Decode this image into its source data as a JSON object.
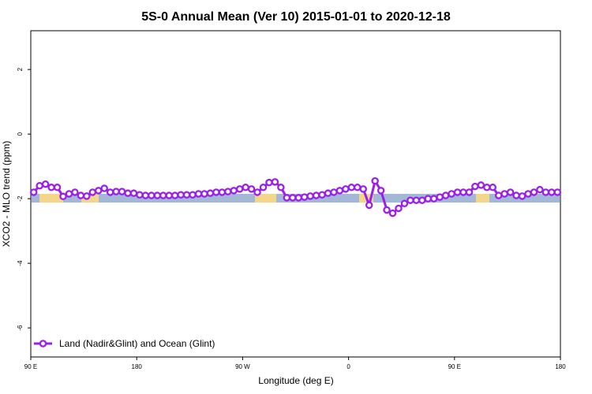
{
  "chart_data": {
    "type": "line",
    "title": "5S-0 Annual Mean (Ver 10)   2015-01-01 to 2020-12-18",
    "xlabel": "Longitude (deg E)",
    "ylabel": "XCO2 - MLO trend (ppm)",
    "xlim": [
      90,
      450
    ],
    "ylim": [
      -6.9,
      3.2
    ],
    "x_ticks": [
      {
        "value": 90,
        "label": "90 E"
      },
      {
        "value": 162,
        "label": "180"
      },
      {
        "value": 234,
        "label": "90 W"
      },
      {
        "value": 306,
        "label": "0"
      },
      {
        "value": 378,
        "label": "90 E"
      },
      {
        "value": 450,
        "label": "180"
      }
    ],
    "y_ticks": [
      {
        "value": 2,
        "label": "2"
      },
      {
        "value": 0,
        "label": "0"
      },
      {
        "value": -2,
        "label": "-2"
      },
      {
        "value": -4,
        "label": "-4"
      },
      {
        "value": -6,
        "label": "-6"
      }
    ],
    "grid": false,
    "legend_position": "bottom-left",
    "series": [
      {
        "name": "Land (Nadir&Glint) and Ocean (Glint)",
        "color": "#9b1fe8",
        "marker": "open-circle",
        "x": [
          92,
          96,
          100,
          104,
          108,
          112,
          116,
          120,
          124,
          128,
          132,
          136,
          140,
          144,
          148,
          152,
          156,
          160,
          164,
          168,
          172,
          176,
          180,
          184,
          188,
          192,
          196,
          200,
          204,
          208,
          212,
          216,
          220,
          224,
          228,
          232,
          236,
          240,
          244,
          248,
          252,
          256,
          260,
          264,
          268,
          272,
          276,
          280,
          284,
          288,
          292,
          296,
          300,
          304,
          308,
          312,
          316,
          320,
          324,
          328,
          332,
          336,
          340,
          344,
          348,
          352,
          356,
          360,
          364,
          368,
          372,
          376,
          380,
          384,
          388,
          392,
          396,
          400,
          404,
          408,
          412,
          416,
          420,
          424,
          428,
          432,
          436,
          440,
          444,
          448
        ],
        "y": [
          -1.8,
          -1.6,
          -1.55,
          -1.65,
          -1.65,
          -1.93,
          -1.85,
          -1.8,
          -1.9,
          -1.92,
          -1.8,
          -1.75,
          -1.68,
          -1.8,
          -1.78,
          -1.78,
          -1.83,
          -1.83,
          -1.88,
          -1.9,
          -1.9,
          -1.9,
          -1.9,
          -1.9,
          -1.9,
          -1.88,
          -1.88,
          -1.88,
          -1.85,
          -1.85,
          -1.83,
          -1.8,
          -1.8,
          -1.78,
          -1.75,
          -1.7,
          -1.65,
          -1.7,
          -1.8,
          -1.65,
          -1.5,
          -1.48,
          -1.65,
          -1.97,
          -1.97,
          -1.97,
          -1.95,
          -1.92,
          -1.9,
          -1.88,
          -1.83,
          -1.8,
          -1.75,
          -1.7,
          -1.65,
          -1.65,
          -1.7,
          -2.2,
          -1.45,
          -1.75,
          -2.35,
          -2.45,
          -2.3,
          -2.15,
          -2.05,
          -2.05,
          -2.05,
          -2.0,
          -2.0,
          -1.95,
          -1.9,
          -1.85,
          -1.8,
          -1.8,
          -1.8,
          -1.62,
          -1.58,
          -1.65,
          -1.65,
          -1.9,
          -1.85,
          -1.8,
          -1.9,
          -1.92,
          -1.85,
          -1.8,
          -1.72,
          -1.8,
          -1.8,
          -1.8
        ]
      }
    ]
  }
}
